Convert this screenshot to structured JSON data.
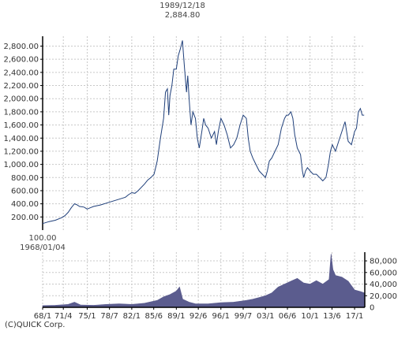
{
  "chart_data": [
    {
      "type": "line",
      "title": "",
      "ylim": [
        0,
        2950
      ],
      "y_ticks": [
        200,
        400,
        600,
        800,
        1000,
        1200,
        1400,
        1600,
        1800,
        2000,
        2200,
        2400,
        2600,
        2800
      ],
      "y_tick_labels": [
        "200.00",
        "400.00",
        "600.00",
        "800.00",
        "1,000.00",
        "1,200.00",
        "1,400.00",
        "1,600.00",
        "1,800.00",
        "2,000.00",
        "2,200.00",
        "2,400.00",
        "2,600.00",
        "2,800.00"
      ],
      "grid": true,
      "colors": {
        "line": "#1f3f7a",
        "grid": "#c8c8c8",
        "axis": "#000000"
      },
      "series": [
        {
          "x": [
            1968.0,
            1969.0,
            1970.0,
            1971.0,
            1971.5,
            1972.0,
            1972.5,
            1973.0,
            1973.3,
            1973.8,
            1974.5,
            1975.0,
            1975.5,
            1976.0,
            1977.0,
            1978.0,
            1979.0,
            1980.0,
            1981.0,
            1981.5,
            1982.0,
            1982.5,
            1983.0,
            1984.0,
            1984.5,
            1985.0,
            1985.5,
            1986.0,
            1986.5,
            1987.0,
            1987.3,
            1987.6,
            1987.8,
            1988.0,
            1988.3,
            1988.6,
            1989.0,
            1989.3,
            1989.6,
            1989.96,
            1990.1,
            1990.3,
            1990.6,
            1990.8,
            1991.0,
            1991.3,
            1991.6,
            1992.0,
            1992.3,
            1992.6,
            1993.0,
            1993.3,
            1993.6,
            1994.0,
            1994.5,
            1995.0,
            1995.3,
            1995.6,
            1996.0,
            1996.5,
            1997.0,
            1997.5,
            1998.0,
            1998.5,
            1999.0,
            1999.5,
            2000.0,
            2000.3,
            2000.6,
            2001.0,
            2001.5,
            2002.0,
            2002.5,
            2003.0,
            2003.3,
            2003.6,
            2004.0,
            2004.5,
            2005.0,
            2005.5,
            2006.0,
            2006.3,
            2006.6,
            2007.0,
            2007.3,
            2007.6,
            2008.0,
            2008.5,
            2008.8,
            2009.0,
            2009.3,
            2009.6,
            2010.0,
            2010.5,
            2011.0,
            2011.5,
            2012.0,
            2012.5,
            2012.9,
            2013.2,
            2013.5,
            2014.0,
            2014.5,
            2015.0,
            2015.5,
            2016.0,
            2016.5,
            2017.0,
            2017.3,
            2017.6,
            2017.9,
            2018.2,
            2018.5
          ],
          "y": [
            100,
            130,
            150,
            190,
            220,
            270,
            340,
            400,
            390,
            360,
            350,
            320,
            340,
            360,
            380,
            410,
            440,
            470,
            500,
            540,
            570,
            560,
            600,
            700,
            760,
            800,
            850,
            1050,
            1400,
            1700,
            2100,
            2150,
            1750,
            2050,
            2200,
            2450,
            2450,
            2650,
            2750,
            2884.8,
            2700,
            2450,
            2100,
            2350,
            2000,
            1600,
            1800,
            1700,
            1400,
            1250,
            1500,
            1700,
            1600,
            1550,
            1400,
            1500,
            1300,
            1500,
            1700,
            1600,
            1450,
            1250,
            1300,
            1400,
            1600,
            1750,
            1700,
            1400,
            1200,
            1100,
            1000,
            900,
            850,
            800,
            900,
            1050,
            1100,
            1200,
            1300,
            1550,
            1700,
            1750,
            1750,
            1800,
            1700,
            1450,
            1250,
            1150,
            900,
            800,
            900,
            950,
            900,
            850,
            850,
            800,
            750,
            800,
            1000,
            1200,
            1300,
            1200,
            1350,
            1500,
            1650,
            1350,
            1300,
            1500,
            1550,
            1800,
            1850,
            1750,
            1750
          ]
        }
      ],
      "x_range": [
        1968.0,
        2018.6
      ],
      "annotations": [
        {
          "label_date": "1989/12/18",
          "label_value": "2,884.80",
          "type": "max"
        },
        {
          "label_value": "100.00",
          "label_date": "1968/01/04",
          "type": "min"
        }
      ]
    },
    {
      "type": "area",
      "title": "",
      "ylim": [
        0,
        95000
      ],
      "y_ticks": [
        20000,
        40000,
        60000,
        80000
      ],
      "y_tick_labels": [
        "20,000",
        "40,000",
        "60,000",
        "80,000"
      ],
      "x_tick_labels": [
        "68/1",
        "71/4",
        "75/1",
        "78/7",
        "82/1",
        "85/6",
        "89/1",
        "92/6",
        "96/1",
        "99/7",
        "03/1",
        "06/6",
        "10/1",
        "13/6",
        "17/1"
      ],
      "x_tick_values": [
        1968.0,
        1971.25,
        1975.0,
        1978.5,
        1982.0,
        1985.45,
        1989.0,
        1992.45,
        1996.0,
        1999.5,
        2003.0,
        2006.45,
        2010.0,
        2013.45,
        2017.0
      ],
      "grid": true,
      "colors": {
        "fill": "#5b5c8e",
        "grid": "#c8c8c8",
        "axis": "#000000"
      },
      "series": [
        {
          "x": [
            1968.0,
            1970.0,
            1972.0,
            1973.0,
            1974.0,
            1976.0,
            1978.0,
            1980.0,
            1982.0,
            1984.0,
            1986.0,
            1987.0,
            1988.0,
            1989.0,
            1989.5,
            1990.0,
            1991.0,
            1992.0,
            1994.0,
            1996.0,
            1998.0,
            2000.0,
            2001.0,
            2002.0,
            2003.0,
            2004.0,
            2005.0,
            2006.0,
            2007.0,
            2008.0,
            2009.0,
            2010.0,
            2011.0,
            2012.0,
            2013.0,
            2013.3,
            2013.6,
            2014.0,
            2015.0,
            2016.0,
            2017.0,
            2018.0,
            2018.5
          ],
          "y": [
            3000,
            3500,
            5000,
            9000,
            4000,
            3500,
            5000,
            6000,
            5000,
            7000,
            12000,
            18000,
            22000,
            28000,
            35000,
            14000,
            9000,
            6000,
            6000,
            8000,
            9000,
            12000,
            14000,
            17000,
            20000,
            25000,
            35000,
            40000,
            45000,
            50000,
            42000,
            40000,
            46000,
            40000,
            48000,
            92000,
            65000,
            55000,
            52000,
            45000,
            30000,
            27000,
            25000
          ]
        }
      ]
    }
  ],
  "footer": {
    "credit": "(C)QUICK Corp."
  }
}
